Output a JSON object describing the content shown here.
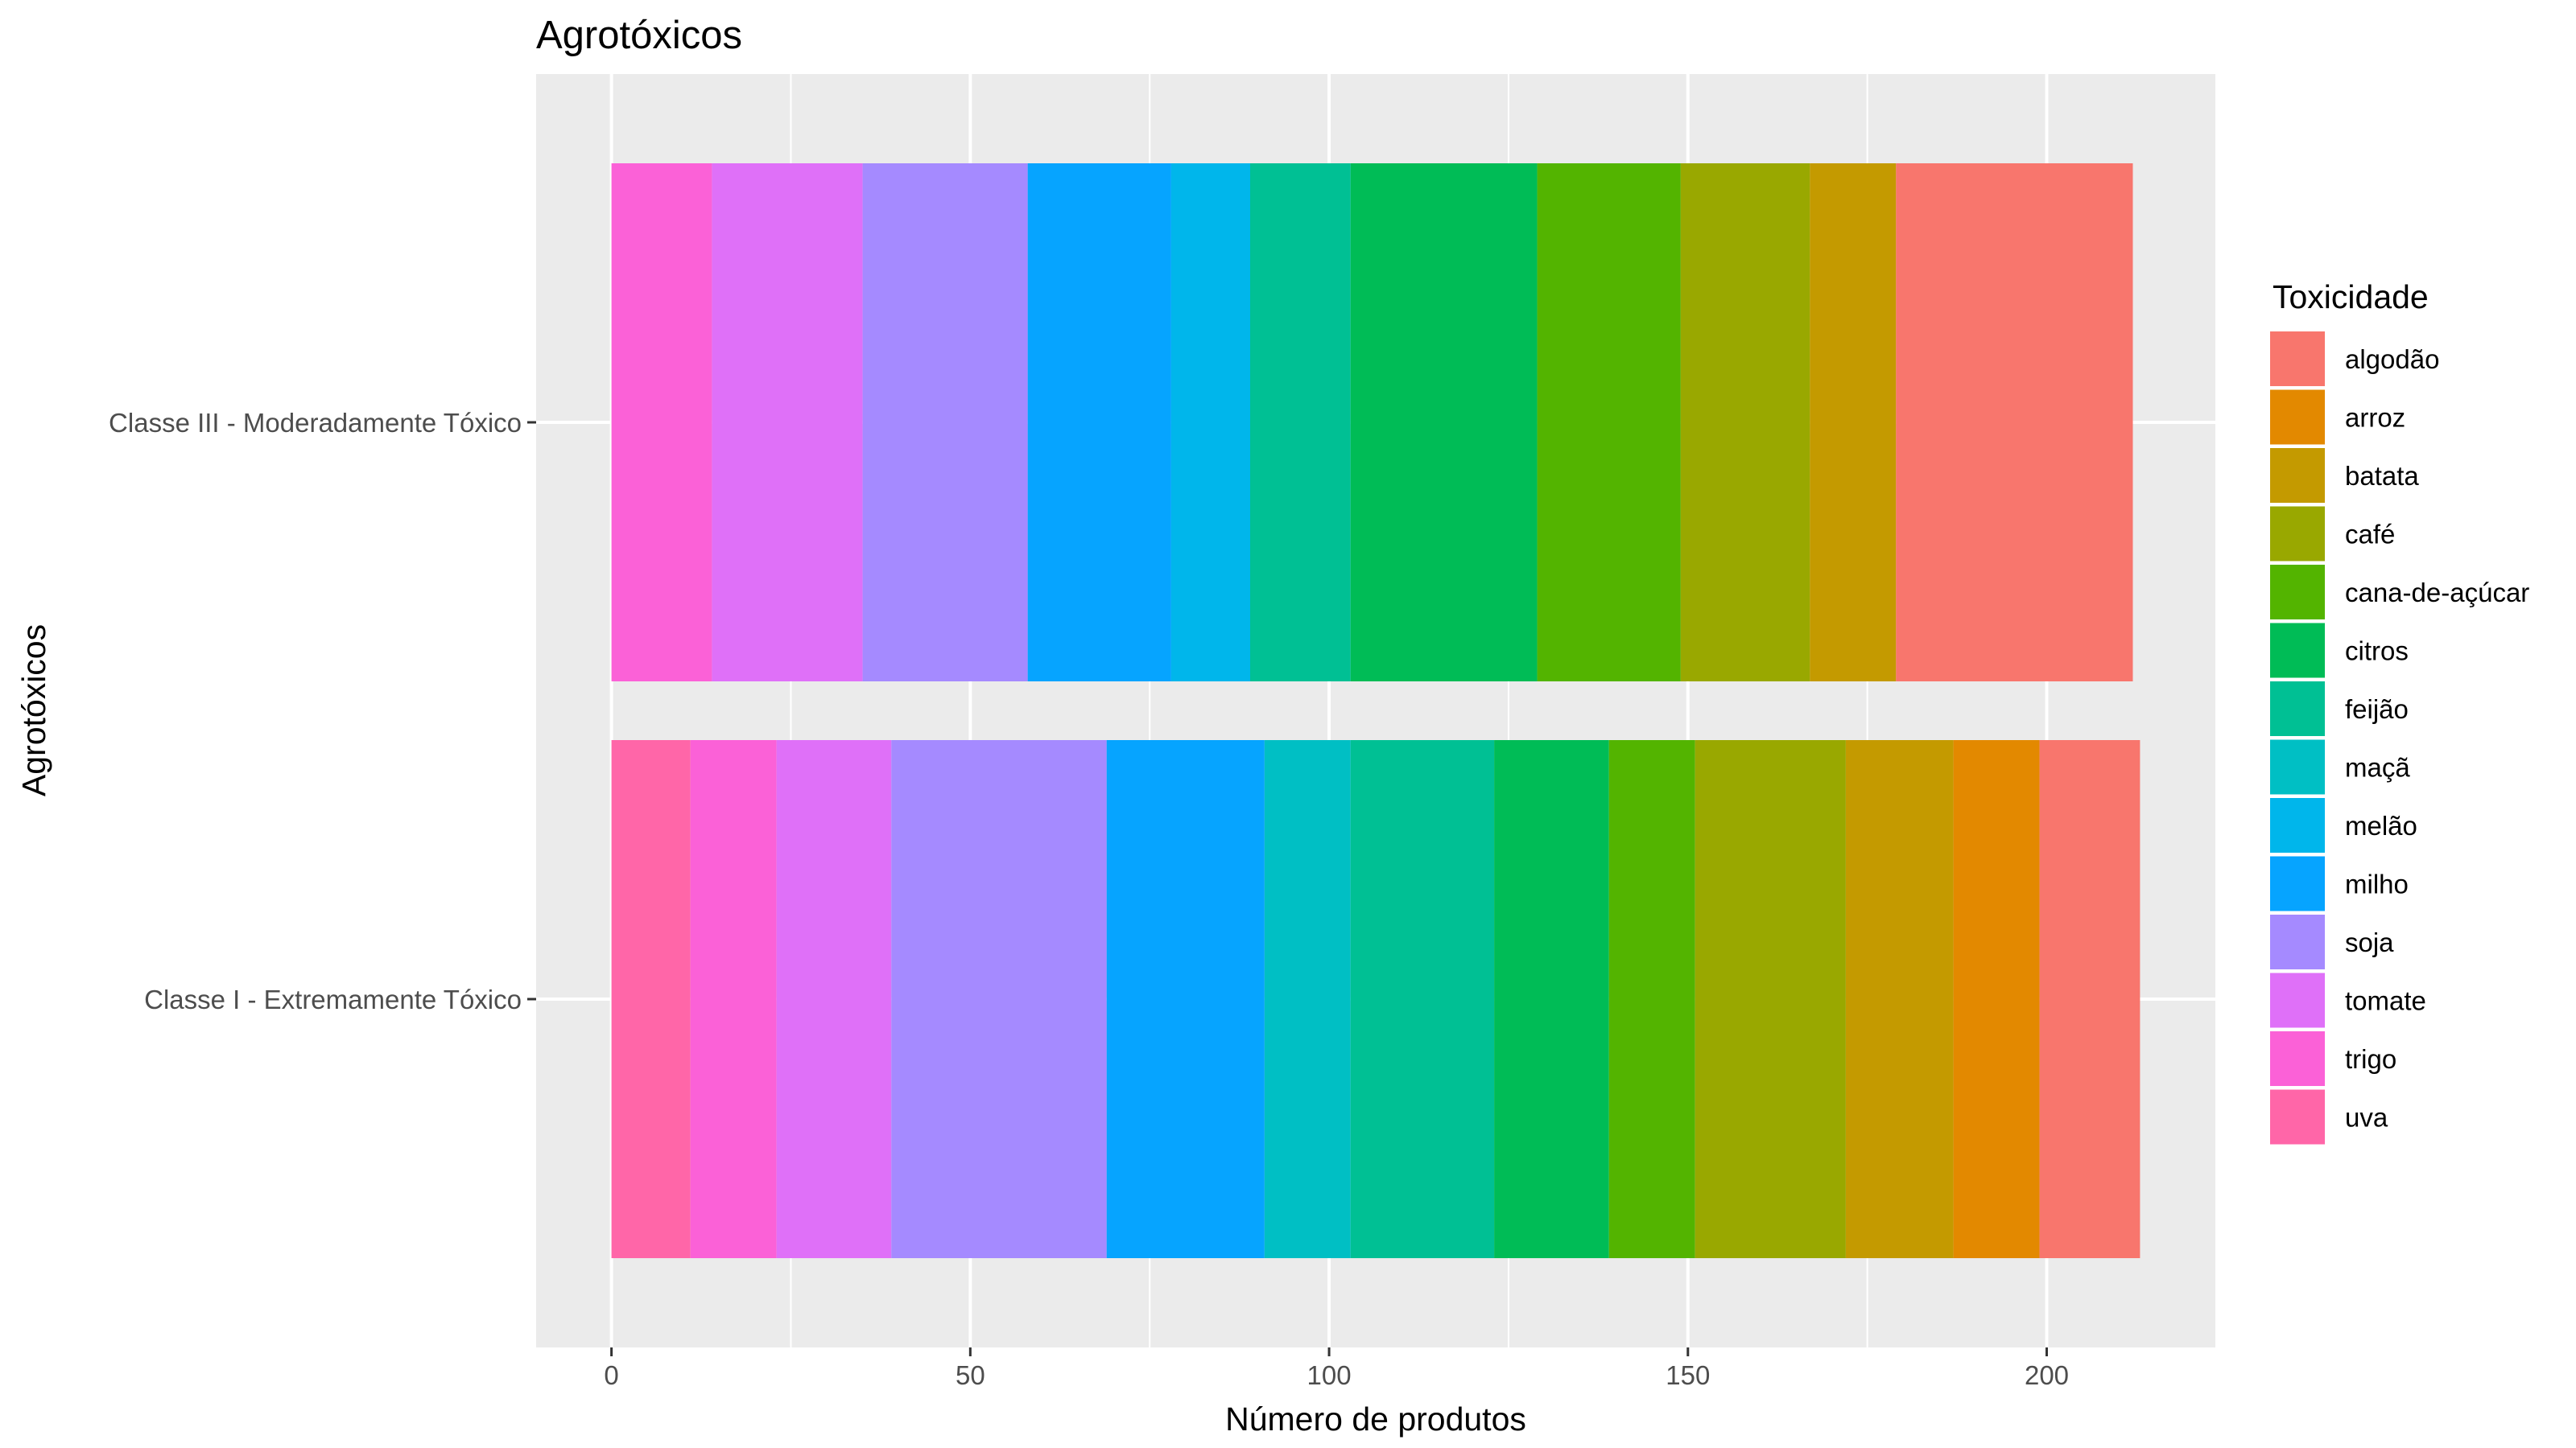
{
  "chart_data": {
    "type": "bar",
    "orientation": "horizontal",
    "stacked": true,
    "title": "Agrotóxicos",
    "xlabel": "Número de produtos",
    "ylabel": "Agrotóxicos",
    "xlim": [
      -10.5,
      223.5
    ],
    "x_ticks": [
      0,
      50,
      100,
      150,
      200
    ],
    "grid": true,
    "legend_position": "right",
    "legend_title": "Toxicidade",
    "categories": [
      "Classe III - Moderadamente Tóxico",
      "Classe I - Extremamente Tóxico"
    ],
    "stack_order": [
      "uva",
      "trigo",
      "tomate",
      "soja",
      "milho",
      "melão",
      "maçã",
      "feijão",
      "citros",
      "cana-de-açúcar",
      "café",
      "batata",
      "arroz",
      "algodão"
    ],
    "series": [
      {
        "name": "algodão",
        "color": "#F8766D",
        "values": [
          33,
          14
        ]
      },
      {
        "name": "arroz",
        "color": "#E38900",
        "values": [
          0,
          12
        ]
      },
      {
        "name": "batata",
        "color": "#C49A00",
        "values": [
          12,
          15
        ]
      },
      {
        "name": "café",
        "color": "#99A800",
        "values": [
          18,
          21
        ]
      },
      {
        "name": "cana-de-açúcar",
        "color": "#53B400",
        "values": [
          20,
          12
        ]
      },
      {
        "name": "citros",
        "color": "#00BC56",
        "values": [
          26,
          16
        ]
      },
      {
        "name": "feijão",
        "color": "#00C094",
        "values": [
          14,
          20
        ]
      },
      {
        "name": "maçã",
        "color": "#00BFC4",
        "values": [
          0,
          12
        ]
      },
      {
        "name": "melão",
        "color": "#00B6EB",
        "values": [
          11,
          0
        ]
      },
      {
        "name": "milho",
        "color": "#06A4FF",
        "values": [
          20,
          22
        ]
      },
      {
        "name": "soja",
        "color": "#A58AFF",
        "values": [
          23,
          30
        ]
      },
      {
        "name": "tomate",
        "color": "#DF70F8",
        "values": [
          21,
          16
        ]
      },
      {
        "name": "trigo",
        "color": "#FB61D7",
        "values": [
          14,
          12
        ]
      },
      {
        "name": "uva",
        "color": "#FF66A8",
        "values": [
          0,
          11
        ]
      }
    ]
  }
}
